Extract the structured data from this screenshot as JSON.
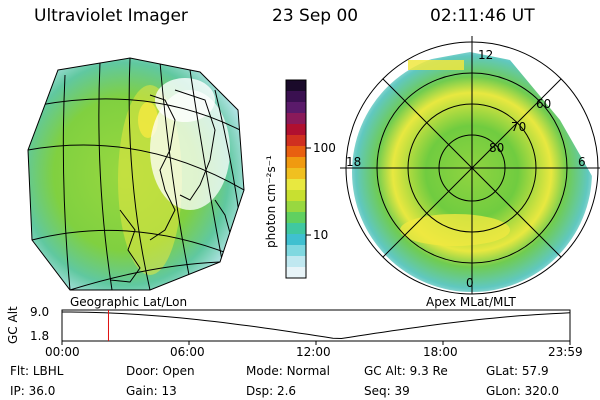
{
  "header": {
    "title": "Ultraviolet Imager",
    "date": "23 Sep 00",
    "time": "02:11:46 UT"
  },
  "colorbar": {
    "unit_label": "photon cm⁻²s⁻¹",
    "ticks": [
      "100",
      "10"
    ],
    "colors": [
      "#1a0a2a",
      "#3a1050",
      "#5a1a6a",
      "#8a1a5a",
      "#b01030",
      "#d03020",
      "#e86010",
      "#f09a10",
      "#f0c020",
      "#e8e840",
      "#c8e030",
      "#98d840",
      "#60d060",
      "#40c8a0",
      "#40c0d0",
      "#80d8e0",
      "#c0e8f0",
      "#e8f4f8"
    ]
  },
  "left_panel": {
    "label": "Geographic Lat/Lon"
  },
  "right_panel": {
    "label": "Apex MLat/MLT",
    "mlt_labels": {
      "top": "12",
      "left": "18",
      "right": "6",
      "bottom": "0"
    },
    "lat_labels": [
      "60",
      "70",
      "80"
    ]
  },
  "timeline": {
    "ylabel": "GC Alt",
    "y_ticks": [
      "9.0",
      "1.8"
    ],
    "x_ticks": [
      "00:00",
      "06:00",
      "12:00",
      "18:00",
      "23:59"
    ],
    "marker_time_hours": 2.196,
    "marker_color": "#e01010"
  },
  "status": {
    "row1": [
      {
        "k": "Flt:",
        "v": "LBHL"
      },
      {
        "k": "Door:",
        "v": "Open"
      },
      {
        "k": "Mode:",
        "v": "Normal"
      },
      {
        "k": "GC Alt:",
        "v": "9.3 Re"
      },
      {
        "k": "GLat:",
        "v": "57.9"
      }
    ],
    "row2": [
      {
        "k": "IP:",
        "v": "36.0"
      },
      {
        "k": "Gain:",
        "v": "13"
      },
      {
        "k": "Dsp:",
        "v": "2.6"
      },
      {
        "k": "Seq:",
        "v": "39"
      },
      {
        "k": "GLon:",
        "v": "320.0"
      }
    ]
  }
}
